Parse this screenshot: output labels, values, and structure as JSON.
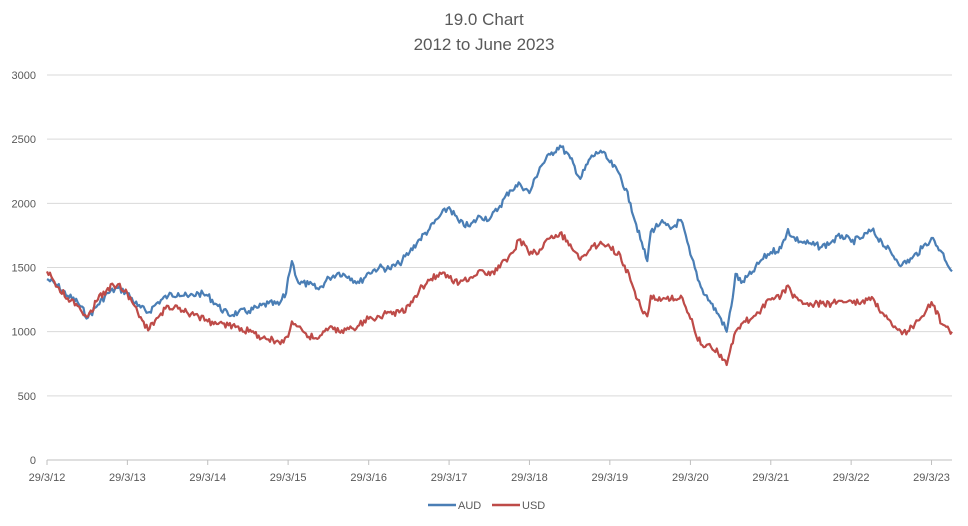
{
  "chart_data": {
    "type": "line",
    "title": "19.0 Chart",
    "subtitle": "2012 to  June 2023",
    "xlabel": "",
    "ylabel": "",
    "ylim": [
      0,
      3000
    ],
    "yticks": [
      0,
      500,
      1000,
      1500,
      2000,
      2500,
      3000
    ],
    "xlim": [
      "2012-03-29",
      "2023-06-30"
    ],
    "xticks": [
      "29/3/12",
      "29/3/13",
      "29/3/14",
      "29/3/15",
      "29/3/16",
      "29/3/17",
      "29/3/18",
      "29/3/19",
      "29/3/20",
      "29/3/21",
      "29/3/22",
      "29/3/23"
    ],
    "grid": true,
    "legend_position": "bottom",
    "series": [
      {
        "name": "AUD",
        "color": "#4a7eb5",
        "points": [
          [
            "2012-03-29",
            1410
          ],
          [
            "2012-05-15",
            1360
          ],
          [
            "2012-07-01",
            1280
          ],
          [
            "2012-08-15",
            1230
          ],
          [
            "2012-10-01",
            1110
          ],
          [
            "2012-11-15",
            1210
          ],
          [
            "2012-12-30",
            1300
          ],
          [
            "2013-02-15",
            1340
          ],
          [
            "2013-03-29",
            1300
          ],
          [
            "2013-05-15",
            1200
          ],
          [
            "2013-07-01",
            1150
          ],
          [
            "2013-08-15",
            1230
          ],
          [
            "2013-10-01",
            1280
          ],
          [
            "2013-11-15",
            1300
          ],
          [
            "2013-12-30",
            1270
          ],
          [
            "2014-02-15",
            1300
          ],
          [
            "2014-03-29",
            1280
          ],
          [
            "2014-05-15",
            1200
          ],
          [
            "2014-07-01",
            1130
          ],
          [
            "2014-08-15",
            1150
          ],
          [
            "2014-10-01",
            1160
          ],
          [
            "2014-11-15",
            1190
          ],
          [
            "2014-12-30",
            1220
          ],
          [
            "2015-02-15",
            1210
          ],
          [
            "2015-03-20",
            1300
          ],
          [
            "2015-03-29",
            1420
          ],
          [
            "2015-04-15",
            1550
          ],
          [
            "2015-05-15",
            1380
          ],
          [
            "2015-07-01",
            1370
          ],
          [
            "2015-08-15",
            1330
          ],
          [
            "2015-10-01",
            1420
          ],
          [
            "2015-11-15",
            1460
          ],
          [
            "2015-12-30",
            1430
          ],
          [
            "2016-02-15",
            1380
          ],
          [
            "2016-03-29",
            1460
          ],
          [
            "2016-05-15",
            1500
          ],
          [
            "2016-07-01",
            1490
          ],
          [
            "2016-08-15",
            1530
          ],
          [
            "2016-10-01",
            1620
          ],
          [
            "2016-11-15",
            1720
          ],
          [
            "2016-12-30",
            1800
          ],
          [
            "2017-02-15",
            1900
          ],
          [
            "2017-03-29",
            1970
          ],
          [
            "2017-05-15",
            1850
          ],
          [
            "2017-07-01",
            1820
          ],
          [
            "2017-08-15",
            1900
          ],
          [
            "2017-10-01",
            1880
          ],
          [
            "2017-11-15",
            1980
          ],
          [
            "2017-12-30",
            2100
          ],
          [
            "2018-02-15",
            2150
          ],
          [
            "2018-03-29",
            2080
          ],
          [
            "2018-05-15",
            2280
          ],
          [
            "2018-07-01",
            2380
          ],
          [
            "2018-08-15",
            2450
          ],
          [
            "2018-10-01",
            2350
          ],
          [
            "2018-11-15",
            2190
          ],
          [
            "2018-12-30",
            2350
          ],
          [
            "2019-02-15",
            2410
          ],
          [
            "2019-03-29",
            2320
          ],
          [
            "2019-05-15",
            2220
          ],
          [
            "2019-07-01",
            2000
          ],
          [
            "2019-08-15",
            1720
          ],
          [
            "2019-09-15",
            1550
          ],
          [
            "2019-10-01",
            1780
          ],
          [
            "2019-11-15",
            1850
          ],
          [
            "2019-12-30",
            1800
          ],
          [
            "2020-02-15",
            1870
          ],
          [
            "2020-03-29",
            1600
          ],
          [
            "2020-05-15",
            1350
          ],
          [
            "2020-07-01",
            1220
          ],
          [
            "2020-08-15",
            1100
          ],
          [
            "2020-09-10",
            1000
          ],
          [
            "2020-10-01",
            1200
          ],
          [
            "2020-10-20",
            1450
          ],
          [
            "2020-11-15",
            1380
          ],
          [
            "2020-12-30",
            1450
          ],
          [
            "2021-02-15",
            1560
          ],
          [
            "2021-03-29",
            1620
          ],
          [
            "2021-05-15",
            1650
          ],
          [
            "2021-06-15",
            1800
          ],
          [
            "2021-07-01",
            1740
          ],
          [
            "2021-08-15",
            1700
          ],
          [
            "2021-10-01",
            1680
          ],
          [
            "2021-11-15",
            1660
          ],
          [
            "2021-12-30",
            1700
          ],
          [
            "2022-02-15",
            1750
          ],
          [
            "2022-03-29",
            1700
          ],
          [
            "2022-05-15",
            1730
          ],
          [
            "2022-07-01",
            1790
          ],
          [
            "2022-08-15",
            1700
          ],
          [
            "2022-10-01",
            1600
          ],
          [
            "2022-11-15",
            1520
          ],
          [
            "2022-12-30",
            1570
          ],
          [
            "2023-02-15",
            1650
          ],
          [
            "2023-03-29",
            1730
          ],
          [
            "2023-05-15",
            1620
          ],
          [
            "2023-06-30",
            1470
          ]
        ]
      },
      {
        "name": "USD",
        "color": "#be4b48",
        "points": [
          [
            "2012-03-29",
            1470
          ],
          [
            "2012-05-15",
            1350
          ],
          [
            "2012-07-01",
            1260
          ],
          [
            "2012-08-15",
            1200
          ],
          [
            "2012-10-01",
            1120
          ],
          [
            "2012-11-15",
            1250
          ],
          [
            "2012-12-30",
            1340
          ],
          [
            "2013-02-15",
            1370
          ],
          [
            "2013-03-29",
            1300
          ],
          [
            "2013-05-15",
            1150
          ],
          [
            "2013-07-01",
            1010
          ],
          [
            "2013-08-15",
            1110
          ],
          [
            "2013-10-01",
            1200
          ],
          [
            "2013-11-15",
            1180
          ],
          [
            "2013-12-30",
            1140
          ],
          [
            "2014-02-15",
            1120
          ],
          [
            "2014-03-29",
            1080
          ],
          [
            "2014-05-15",
            1060
          ],
          [
            "2014-07-01",
            1050
          ],
          [
            "2014-08-15",
            1040
          ],
          [
            "2014-10-01",
            1000
          ],
          [
            "2014-11-15",
            970
          ],
          [
            "2014-12-30",
            940
          ],
          [
            "2015-02-15",
            920
          ],
          [
            "2015-03-29",
            960
          ],
          [
            "2015-04-15",
            1080
          ],
          [
            "2015-05-15",
            1040
          ],
          [
            "2015-07-01",
            960
          ],
          [
            "2015-08-15",
            950
          ],
          [
            "2015-10-01",
            1030
          ],
          [
            "2015-11-15",
            1000
          ],
          [
            "2015-12-30",
            1020
          ],
          [
            "2016-02-15",
            1050
          ],
          [
            "2016-03-29",
            1100
          ],
          [
            "2016-05-15",
            1120
          ],
          [
            "2016-07-01",
            1150
          ],
          [
            "2016-08-15",
            1150
          ],
          [
            "2016-10-01",
            1200
          ],
          [
            "2016-11-15",
            1330
          ],
          [
            "2016-12-30",
            1400
          ],
          [
            "2017-02-15",
            1460
          ],
          [
            "2017-03-29",
            1420
          ],
          [
            "2017-05-15",
            1380
          ],
          [
            "2017-07-01",
            1420
          ],
          [
            "2017-08-15",
            1480
          ],
          [
            "2017-10-01",
            1440
          ],
          [
            "2017-11-15",
            1500
          ],
          [
            "2017-12-30",
            1600
          ],
          [
            "2018-02-15",
            1720
          ],
          [
            "2018-03-29",
            1600
          ],
          [
            "2018-05-15",
            1640
          ],
          [
            "2018-07-01",
            1730
          ],
          [
            "2018-08-15",
            1770
          ],
          [
            "2018-10-01",
            1680
          ],
          [
            "2018-11-15",
            1560
          ],
          [
            "2018-12-30",
            1640
          ],
          [
            "2019-02-15",
            1700
          ],
          [
            "2019-03-29",
            1660
          ],
          [
            "2019-05-15",
            1600
          ],
          [
            "2019-07-01",
            1400
          ],
          [
            "2019-08-15",
            1200
          ],
          [
            "2019-09-15",
            1120
          ],
          [
            "2019-10-01",
            1280
          ],
          [
            "2019-11-15",
            1240
          ],
          [
            "2019-12-30",
            1250
          ],
          [
            "2020-02-15",
            1280
          ],
          [
            "2020-03-29",
            1100
          ],
          [
            "2020-05-15",
            900
          ],
          [
            "2020-07-01",
            880
          ],
          [
            "2020-08-15",
            820
          ],
          [
            "2020-09-10",
            740
          ],
          [
            "2020-10-01",
            900
          ],
          [
            "2020-10-20",
            1000
          ],
          [
            "2020-11-15",
            1060
          ],
          [
            "2020-12-30",
            1100
          ],
          [
            "2021-02-15",
            1180
          ],
          [
            "2021-03-29",
            1250
          ],
          [
            "2021-05-15",
            1280
          ],
          [
            "2021-06-15",
            1360
          ],
          [
            "2021-07-01",
            1300
          ],
          [
            "2021-08-15",
            1240
          ],
          [
            "2021-10-01",
            1210
          ],
          [
            "2021-11-15",
            1220
          ],
          [
            "2021-12-30",
            1220
          ],
          [
            "2022-02-15",
            1240
          ],
          [
            "2022-03-29",
            1240
          ],
          [
            "2022-05-15",
            1230
          ],
          [
            "2022-07-01",
            1270
          ],
          [
            "2022-08-15",
            1150
          ],
          [
            "2022-10-01",
            1050
          ],
          [
            "2022-11-15",
            980
          ],
          [
            "2022-12-30",
            1040
          ],
          [
            "2023-02-15",
            1120
          ],
          [
            "2023-03-29",
            1230
          ],
          [
            "2023-05-15",
            1060
          ],
          [
            "2023-06-30",
            1000
          ]
        ]
      }
    ]
  }
}
